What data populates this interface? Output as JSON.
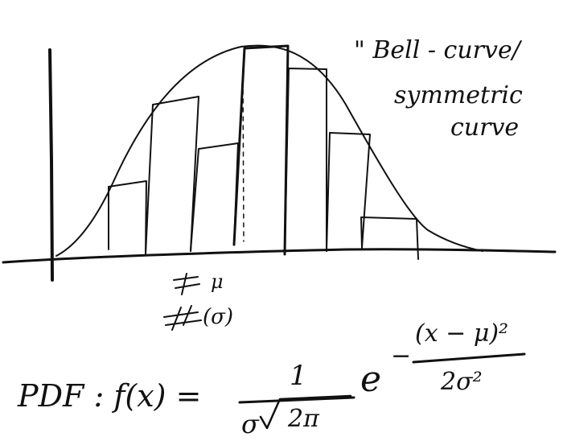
{
  "annotation": {
    "line1": "\" Bell - curve/",
    "line2": "symmetric",
    "line3": "curve"
  },
  "labels": {
    "mean": "μ",
    "sd": "(σ)"
  },
  "formula": {
    "prefix": "PDF : f(x) =",
    "numerator": "1",
    "den_sigma": "σ",
    "den_radicand": "2π",
    "base": "e",
    "minus": "−",
    "exp_numerator": "(x − μ)²",
    "exp_denominator": "2σ²"
  },
  "colors": {
    "ink": "#111111",
    "paper": "#ffffff"
  }
}
